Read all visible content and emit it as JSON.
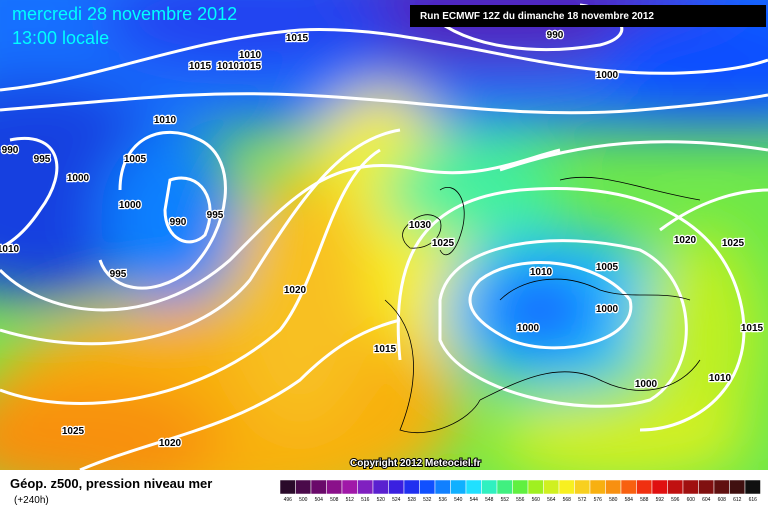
{
  "header": {
    "date": "mercredi 28 novembre 2012",
    "time": "13:00 locale",
    "run": "Run ECMWF 12Z du dimanche 18 novembre 2012"
  },
  "copyright": "Copyright 2012 Meteociel.fr",
  "footer": {
    "title": "Géop. z500, pression niveau mer",
    "lead": "(+240h)"
  },
  "isobar_labels": [
    "1015",
    "1010",
    "1015",
    "1010",
    "1015",
    "1010",
    "990",
    "995",
    "1000",
    "1005",
    "1000",
    "990",
    "995",
    "1010",
    "995",
    "1020",
    "1030",
    "1025",
    "1010",
    "1005",
    "1000",
    "1000",
    "1015",
    "1000",
    "1010",
    "1020",
    "1025",
    "1015",
    "1025",
    "1020",
    "990",
    "1000"
  ],
  "legend": [
    {
      "label": "496",
      "color": "#2a0a2a"
    },
    {
      "label": "500",
      "color": "#4a0a4a"
    },
    {
      "label": "504",
      "color": "#6a0a6a"
    },
    {
      "label": "508",
      "color": "#8a108a"
    },
    {
      "label": "512",
      "color": "#a018a8"
    },
    {
      "label": "516",
      "color": "#8020c0"
    },
    {
      "label": "520",
      "color": "#5a20d0"
    },
    {
      "label": "524",
      "color": "#3a20e0"
    },
    {
      "label": "528",
      "color": "#2030f0"
    },
    {
      "label": "532",
      "color": "#1050ff"
    },
    {
      "label": "536",
      "color": "#1080ff"
    },
    {
      "label": "540",
      "color": "#10b0ff"
    },
    {
      "label": "544",
      "color": "#20e0ff"
    },
    {
      "label": "548",
      "color": "#30f0c0"
    },
    {
      "label": "552",
      "color": "#40f080"
    },
    {
      "label": "556",
      "color": "#60f040"
    },
    {
      "label": "560",
      "color": "#a0f020"
    },
    {
      "label": "564",
      "color": "#d0f020"
    },
    {
      "label": "568",
      "color": "#f8f020"
    },
    {
      "label": "572",
      "color": "#f8d020"
    },
    {
      "label": "576",
      "color": "#f8b010"
    },
    {
      "label": "580",
      "color": "#f89010"
    },
    {
      "label": "584",
      "color": "#f86010"
    },
    {
      "label": "588",
      "color": "#f03010"
    },
    {
      "label": "592",
      "color": "#e01010"
    },
    {
      "label": "596",
      "color": "#c01010"
    },
    {
      "label": "600",
      "color": "#a01010"
    },
    {
      "label": "604",
      "color": "#801010"
    },
    {
      "label": "608",
      "color": "#601010"
    },
    {
      "label": "612",
      "color": "#401010"
    },
    {
      "label": "616",
      "color": "#101010"
    }
  ]
}
